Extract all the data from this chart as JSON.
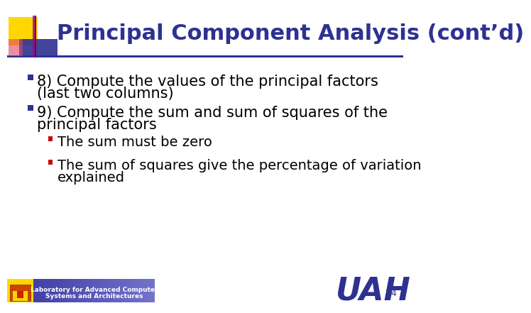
{
  "title": "Principal Component Analysis (cont’d)",
  "title_color": "#2E3192",
  "title_fontsize": 22,
  "background_color": "#FFFFFF",
  "bullet1_line1": "8) Compute the values of the principal factors",
  "bullet1_line2": "(last two columns)",
  "bullet2_line1": "9) Compute the sum and sum of squares of the",
  "bullet2_line2": "principal factors",
  "sub_bullet1": "The sum must be zero",
  "sub_bullet2_line1": "The sum of squares give the percentage of variation",
  "sub_bullet2_line2": "explained",
  "text_color": "#000000",
  "bullet_color": "#2E3192",
  "sub_bullet_color": "#CC0000",
  "text_fontsize": 15,
  "sub_text_fontsize": 14,
  "footer_text_line1": "Laboratory for Advanced Computer",
  "footer_text_line2": "Systems and Architectures",
  "page_number": "74",
  "uah_color": "#2E3192",
  "header_bar_color": "#2E3192",
  "logo_yellow": "#FFD700",
  "logo_red": "#CC0000",
  "logo_blue": "#2E3192",
  "logo_blue_alpha": "#4444AA"
}
